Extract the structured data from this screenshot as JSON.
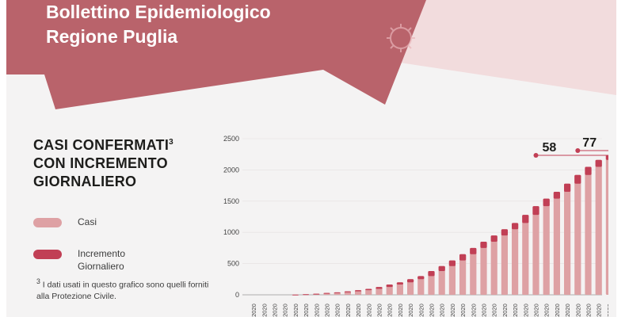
{
  "header": {
    "title_line1": "Bollettino Epidemiologico",
    "title_line2": "Regione Puglia"
  },
  "colors": {
    "banner": "#b9636b",
    "banner_light": "#f2dcdd",
    "casi": "#dea1a4",
    "incremento": "#c13f55",
    "text": "#1d1d1b"
  },
  "legend": {
    "casi_label": "Casi",
    "incremento_label_line1": "Incremento",
    "incremento_label_line2": "Giornaliero"
  },
  "footnote": {
    "marker": "3",
    "text": "I dati usati in questo grafico sono quelli forniti alla Protezione Civile."
  },
  "chart_data": {
    "type": "bar",
    "title_line1": "CASI CONFERMATI",
    "title_superscript": "3",
    "title_line2": "CON INCREMENTO",
    "title_line3": "GIORNALIERO",
    "ylim": [
      0,
      2500
    ],
    "yticks": [
      0,
      500,
      1000,
      1500,
      2000,
      2500
    ],
    "x_tick_label": "/2020",
    "series": [
      {
        "name": "Casi",
        "values": [
          0,
          0,
          0,
          0,
          3,
          10,
          18,
          30,
          40,
          55,
          75,
          95,
          125,
          165,
          200,
          250,
          300,
          380,
          460,
          550,
          650,
          750,
          850,
          950,
          1050,
          1150,
          1280,
          1420,
          1540,
          1650,
          1780,
          1920,
          2050,
          2160,
          2240
        ]
      },
      {
        "name": "Incremento Giornaliero",
        "values": [
          0,
          0,
          0,
          0,
          3,
          7,
          8,
          12,
          10,
          15,
          20,
          20,
          30,
          40,
          35,
          50,
          50,
          80,
          80,
          90,
          100,
          100,
          100,
          100,
          100,
          100,
          130,
          140,
          120,
          110,
          130,
          140,
          130,
          110,
          80
        ]
      }
    ],
    "annotations": [
      {
        "label": "58"
      },
      {
        "label": "77"
      }
    ]
  }
}
